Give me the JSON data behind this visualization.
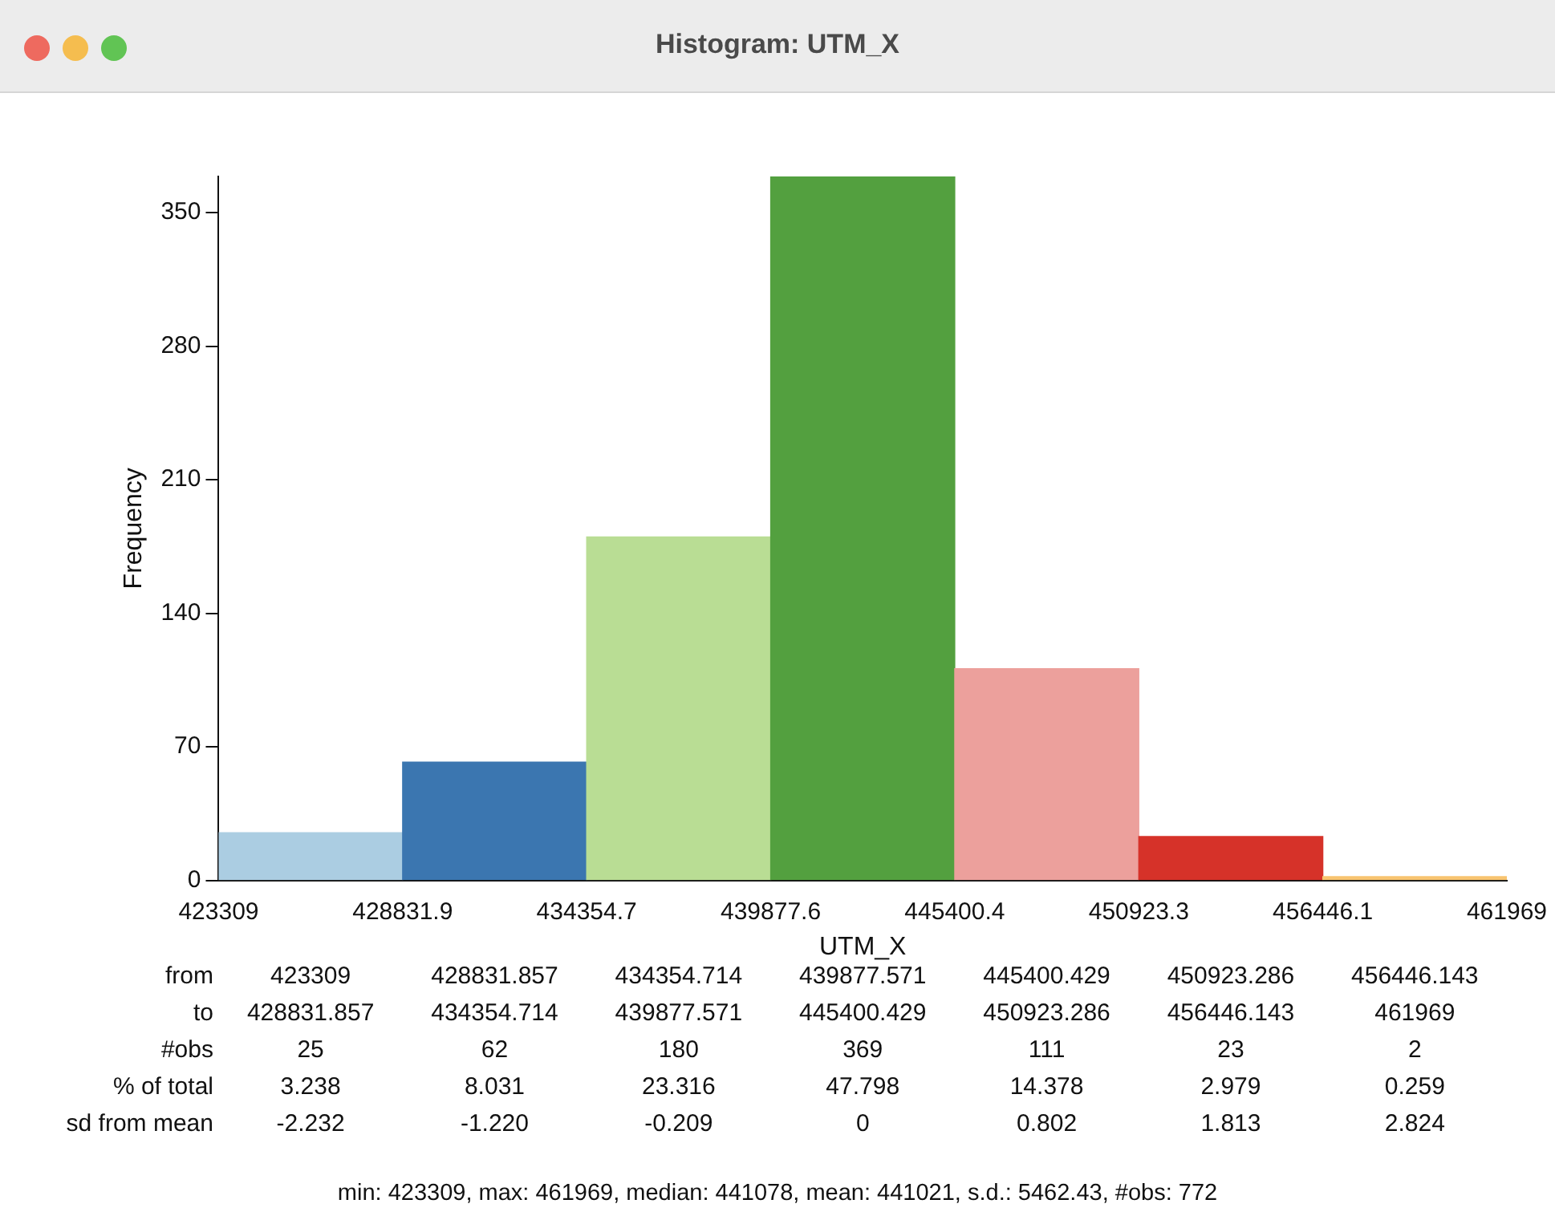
{
  "chart_data": {
    "type": "histogram",
    "title": "Histogram: UTM_X",
    "xlabel": "UTM_X",
    "ylabel": "Frequency",
    "bins": [
      423309,
      428831.857,
      434354.714,
      439877.571,
      445400.429,
      450923.286,
      456446.143,
      461969
    ],
    "values": [
      25,
      62,
      180,
      369,
      111,
      23,
      2
    ],
    "colors": [
      "#abcde2",
      "#3b76b0",
      "#b9dd94",
      "#53a03f",
      "#eca09c",
      "#d63229",
      "#f8c470"
    ],
    "xlim": [
      423309,
      461969
    ],
    "xticks": [
      423309,
      {
        "value": 428831.857,
        "label": "428831.9"
      },
      {
        "value": 434354.714,
        "label": "434354.7"
      },
      {
        "value": 439877.571,
        "label": "439877.6"
      },
      {
        "value": 445400.429,
        "label": "445400.4"
      },
      {
        "value": 450923.286,
        "label": "450923.3"
      },
      {
        "value": 456446.143,
        "label": "456446.1"
      },
      461969
    ],
    "ylim": [
      0,
      369
    ],
    "yticks": [
      0,
      70,
      140,
      210,
      280,
      350
    ],
    "grid": false,
    "legend": false,
    "annotations": [
      "from",
      "to",
      "#obs",
      "% of total",
      "sd from mean",
      "423309",
      "428831.857",
      "434354.714",
      "439877.571",
      "445400.429",
      "450923.286",
      "456446.143",
      "428831.857",
      "434354.714",
      "439877.571",
      "445400.429",
      "450923.286",
      "456446.143",
      "461969",
      "25",
      "62",
      "180",
      "369",
      "111",
      "23",
      "2",
      "3.238",
      "8.031",
      "23.316",
      "47.798",
      "14.378",
      "2.979",
      "0.259",
      "-2.232",
      "-1.220",
      "-0.209",
      "0",
      "0.802",
      "1.813",
      "2.824",
      "min: 423309, max: 461969, median: 441078, mean: 441021, s.d.: 5462.43, #obs: 772"
    ]
  }
}
